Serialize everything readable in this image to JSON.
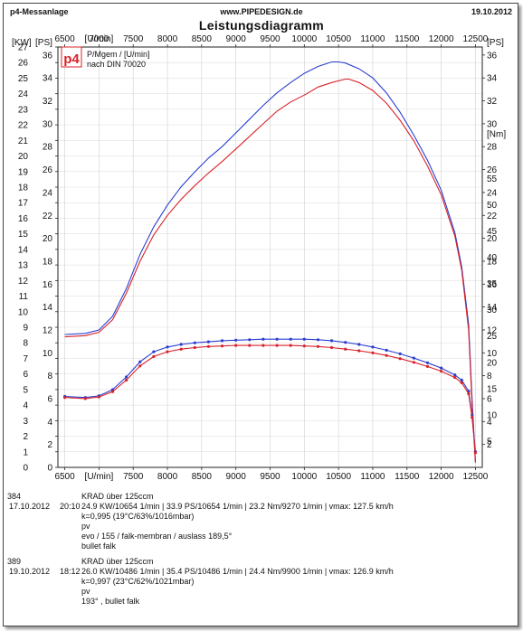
{
  "header": {
    "left": "p4-Messanlage",
    "center": "www.PIPEDESIGN.de",
    "right": "19.10.2012",
    "title": "Leistungsdiagramm"
  },
  "legend": {
    "logo_text": "p4",
    "line1": "P/Mgem / [U/min]",
    "line2": "nach DIN 70020"
  },
  "chart_data": {
    "type": "line",
    "title": "Leistungsdiagramm",
    "xlabel": "[U/min]",
    "x_ticks": [
      "6500",
      "7000",
      "7500",
      "8000",
      "8500",
      "9000",
      "9500",
      "10000",
      "10500",
      "11000",
      "11500",
      "12000",
      "12500"
    ],
    "xlim": [
      6400,
      12600
    ],
    "y_kw_label": "[KW]",
    "y_kw_ticks": [
      "0",
      "1",
      "2",
      "3",
      "4",
      "5",
      "6",
      "7",
      "8",
      "9",
      "10",
      "11",
      "12",
      "13",
      "14",
      "15",
      "16",
      "17",
      "18",
      "19",
      "20",
      "21",
      "22",
      "23",
      "24",
      "25",
      "26",
      "27"
    ],
    "y_kw_range": [
      0,
      27
    ],
    "y_ps_label": "[PS]",
    "y_ps_left_ticks": [
      "0",
      "2",
      "4",
      "6",
      "8",
      "10",
      "12",
      "14",
      "16",
      "18",
      "20",
      "22",
      "24",
      "26",
      "28",
      "30",
      "32",
      "34",
      "36"
    ],
    "y_ps_right_ticks": [
      "2",
      "4",
      "6",
      "8",
      "10",
      "12",
      "14",
      "16",
      "18",
      "20",
      "22",
      "24",
      "26",
      "28",
      "30",
      "32",
      "34",
      "36"
    ],
    "y_ps_range": [
      0,
      36.7
    ],
    "y_nm_label": "[Nm]",
    "y_nm_ticks": [
      "5",
      "10",
      "15",
      "20",
      "25",
      "30",
      "35",
      "40",
      "45",
      "50",
      "55"
    ],
    "y_nm_range": [
      0,
      80
    ],
    "grid": true,
    "series": [
      {
        "name": "389",
        "color": "#2a3fd0",
        "axis": "ps",
        "x": [
          6500,
          6800,
          7000,
          7200,
          7400,
          7600,
          7800,
          8000,
          8200,
          8400,
          8600,
          8800,
          9000,
          9200,
          9400,
          9600,
          9800,
          10000,
          10200,
          10400,
          10500,
          10600,
          10800,
          11000,
          11200,
          11400,
          11600,
          11800,
          12000,
          12200,
          12300,
          12400,
          12450,
          12500
        ],
        "values": [
          11.6,
          11.7,
          12.0,
          13.2,
          15.6,
          18.6,
          21.0,
          22.9,
          24.5,
          25.8,
          27.0,
          28.0,
          29.2,
          30.4,
          31.6,
          32.7,
          33.6,
          34.4,
          35.0,
          35.4,
          35.4,
          35.3,
          34.8,
          34.0,
          32.7,
          31.0,
          29.0,
          26.8,
          24.2,
          20.5,
          17.5,
          12.5,
          6.0,
          0.5
        ]
      },
      {
        "name": "384",
        "color": "#d8222a",
        "axis": "ps",
        "x": [
          6500,
          6800,
          7000,
          7200,
          7400,
          7600,
          7800,
          8000,
          8200,
          8400,
          8600,
          8800,
          9000,
          9200,
          9400,
          9600,
          9800,
          10000,
          10200,
          10400,
          10600,
          10650,
          10800,
          11000,
          11200,
          11400,
          11600,
          11800,
          12000,
          12200,
          12300,
          12400,
          12450,
          12500
        ],
        "values": [
          11.4,
          11.5,
          11.8,
          12.9,
          15.2,
          18.0,
          20.3,
          22.0,
          23.4,
          24.6,
          25.7,
          26.7,
          27.8,
          28.9,
          30.0,
          31.1,
          31.9,
          32.5,
          33.2,
          33.6,
          33.9,
          33.9,
          33.6,
          32.9,
          31.8,
          30.3,
          28.5,
          26.3,
          23.8,
          20.2,
          17.2,
          12.0,
          5.5,
          0.4
        ]
      },
      {
        "name": "389",
        "color": "#2a3fd0",
        "axis": "nm",
        "x": [
          6500,
          6800,
          7000,
          7200,
          7400,
          7600,
          7800,
          8000,
          8200,
          8400,
          8600,
          8800,
          9000,
          9200,
          9400,
          9600,
          9800,
          10000,
          10200,
          10400,
          10600,
          10800,
          11000,
          11200,
          11400,
          11600,
          11800,
          12000,
          12200,
          12300,
          12400,
          12450,
          12500
        ],
        "values": [
          13.5,
          13.3,
          13.6,
          14.8,
          17.2,
          20.1,
          22.0,
          22.9,
          23.4,
          23.7,
          23.9,
          24.1,
          24.2,
          24.3,
          24.4,
          24.4,
          24.4,
          24.4,
          24.3,
          24.1,
          23.8,
          23.4,
          22.9,
          22.3,
          21.6,
          20.8,
          19.9,
          18.9,
          17.6,
          16.6,
          14.5,
          10.0,
          3.0
        ]
      },
      {
        "name": "384",
        "color": "#d8222a",
        "axis": "nm",
        "x": [
          6500,
          6800,
          7000,
          7200,
          7400,
          7600,
          7800,
          8000,
          8200,
          8400,
          8600,
          8800,
          9000,
          9200,
          9400,
          9600,
          9800,
          10000,
          10200,
          10400,
          10600,
          10800,
          11000,
          11200,
          11400,
          11600,
          11800,
          12000,
          12200,
          12300,
          12400,
          12450,
          12500
        ],
        "values": [
          13.3,
          13.1,
          13.4,
          14.4,
          16.6,
          19.3,
          21.1,
          22.0,
          22.5,
          22.8,
          23.0,
          23.1,
          23.2,
          23.2,
          23.2,
          23.2,
          23.2,
          23.1,
          23.0,
          22.8,
          22.5,
          22.2,
          21.8,
          21.3,
          20.7,
          20.0,
          19.2,
          18.3,
          17.1,
          16.1,
          14.0,
          9.5,
          2.8
        ]
      }
    ]
  },
  "runs": [
    {
      "id": "384",
      "vehicle": "KRAD über 125ccm",
      "date": "17.10.2012",
      "time": "20:10",
      "summary": "24.9 KW/10654 1/min  |  33.9 PS/10654 1/min  |  23.2 Nm/9270 1/min  |  vmax: 127.5 km/h",
      "correction": "k=0,995 (19°C/63%/1016mbar)",
      "notes": [
        "pv",
        "evo / 155 / falk-membran / auslass 189,5°",
        "bullet falk"
      ]
    },
    {
      "id": "389",
      "vehicle": "KRAD über 125ccm",
      "date": "19.10.2012",
      "time": "18:12",
      "summary": "26.0 KW/10486 1/min  |  35.4 PS/10486 1/min  |  24.4 Nm/9900 1/min  |  vmax: 126.9 km/h",
      "correction": "k=0,997 (23°C/62%/1021mbar)",
      "notes": [
        "pv",
        "193° , bullet falk"
      ]
    }
  ]
}
